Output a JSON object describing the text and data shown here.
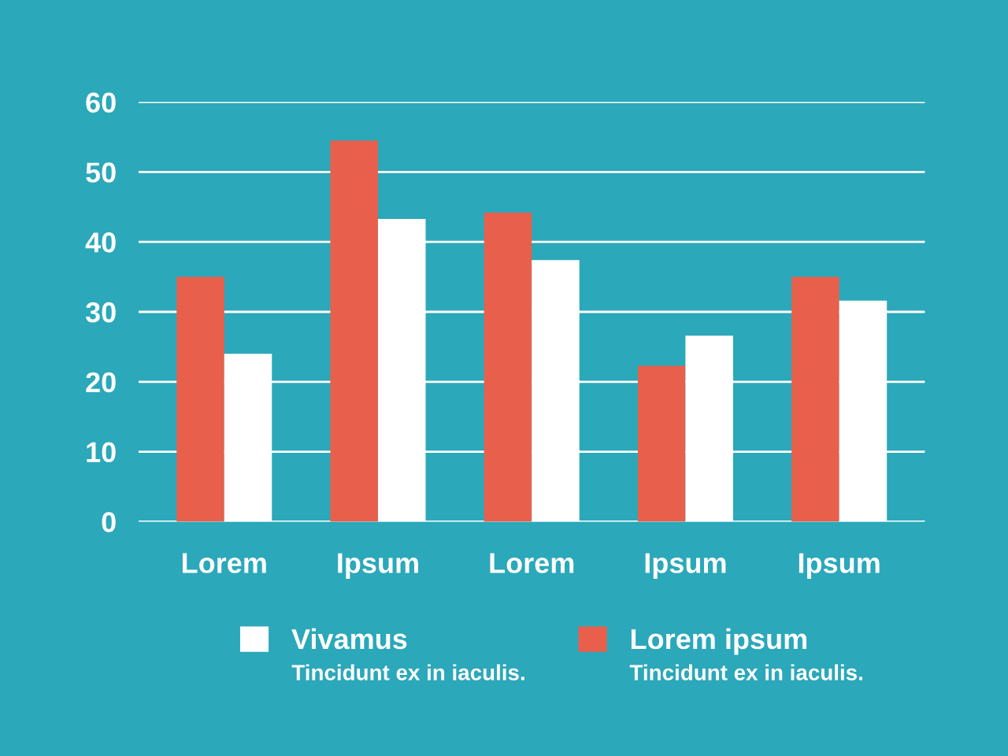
{
  "chart_data": {
    "type": "bar",
    "categories": [
      "Lorem",
      "Ipsum",
      "Lorem",
      "Ipsum",
      "Ipsum"
    ],
    "series": [
      {
        "name": "Lorem ipsum",
        "color": "#e8604c",
        "values": [
          35,
          54.5,
          44.2,
          22.3,
          35
        ]
      },
      {
        "name": "Vivamus",
        "color": "#ffffff",
        "values": [
          24,
          43.3,
          37.4,
          26.6,
          31.6
        ]
      }
    ],
    "annotations": [
      "Tincidunt ex in iaculis.",
      "Tincidunt ex in iaculis."
    ],
    "ylim": [
      0,
      60
    ],
    "yticks": [
      0,
      10,
      20,
      30,
      40,
      50,
      60
    ],
    "grid": "y",
    "legend": "bottom"
  }
}
